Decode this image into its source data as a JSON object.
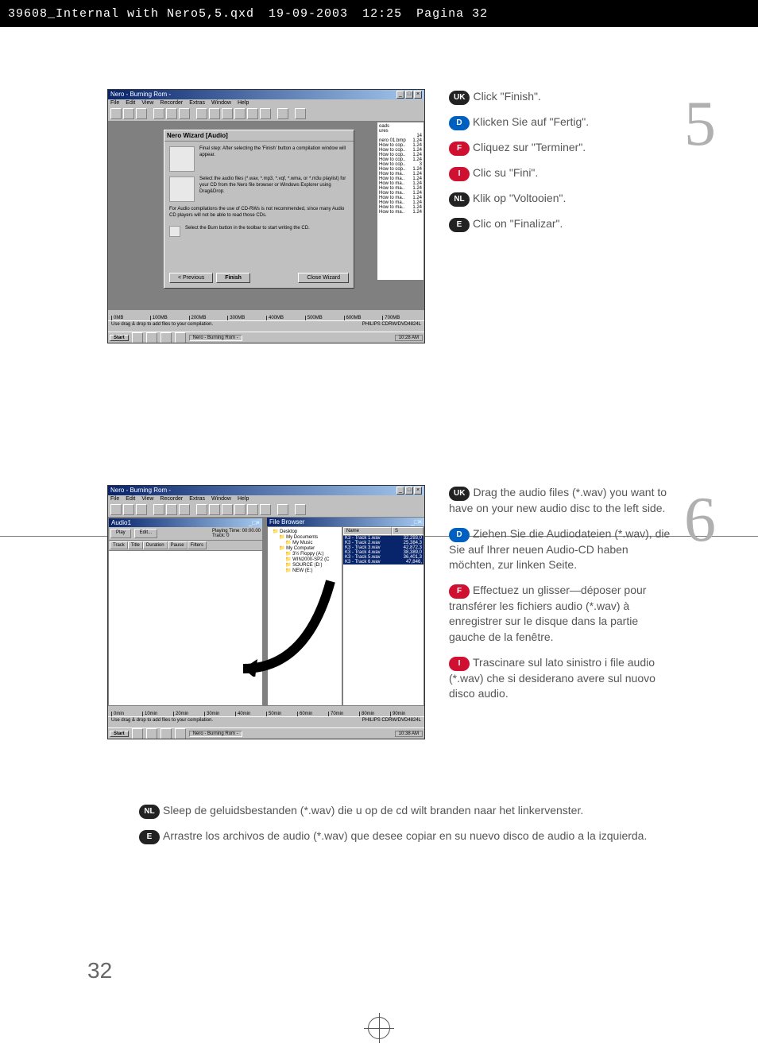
{
  "header": {
    "file": "39608_Internal with Nero5,5.qxd",
    "date": "19-09-2003",
    "time": "12:25",
    "page": "Pagina 32"
  },
  "pageNumber": "32",
  "step5": {
    "number": "5",
    "badges": {
      "uk": "UK",
      "d": "D",
      "f": "F",
      "i": "I",
      "nl": "NL",
      "e": "E"
    },
    "texts": {
      "uk": "Click \"Finish\".",
      "d": "Klicken Sie auf \"Fertig\".",
      "f": "Cliquez sur \"Terminer\".",
      "i": "Clic su \"Fini\".",
      "nl": "Klik op \"Voltooien\".",
      "e": "Clic on \"Finalizar\"."
    },
    "screenshot": {
      "title": "Nero - Burning Rom -",
      "menu": [
        "File",
        "Edit",
        "View",
        "Recorder",
        "Extras",
        "Window",
        "Help"
      ],
      "wizardTitle": "Nero Wizard [Audio]",
      "wizText1": "Final step: After selecting the 'Finish' button a compilation window will appear.",
      "wizText2": "Select the audio files (*.wav, *.mp3, *.vqf, *.wma, or *.m3u playlist) for your CD from the Nero file browser or Windows Explorer using Drag&Drop.",
      "wizText3": "For Audio compilations the use of CD-RWs is not recommended, since many Audio CD players will not be able to read those CDs.",
      "wizText4": "Select the Burn button in the toolbar to start writing the CD.",
      "btnPrev": "< Previous",
      "btnFinish": "Finish",
      "btnClose": "Close Wizard",
      "fileRows": [
        [
          "oads",
          ""
        ],
        [
          "ures",
          ""
        ],
        [
          "",
          "14"
        ],
        [
          "nero 01.bmp",
          "1.24"
        ],
        [
          "How to cop..",
          "1.24"
        ],
        [
          "How to cop..",
          "1.24"
        ],
        [
          "How to cop..",
          "1.24"
        ],
        [
          "How to cop..",
          "1.24"
        ],
        [
          "How to cop..",
          "3"
        ],
        [
          "How to cop..",
          "1.24"
        ],
        [
          "How to ma..",
          "1.24"
        ],
        [
          "How to ma..",
          "1.24"
        ],
        [
          "How to ma..",
          "1.24"
        ],
        [
          "How to ma..",
          "1.24"
        ],
        [
          "How to ma..",
          "1.24"
        ],
        [
          "How to ma..",
          "1.24"
        ],
        [
          "How to ma..",
          "1.24"
        ],
        [
          "How to ma..",
          "1.24"
        ],
        [
          "How to ma..",
          "1.24"
        ]
      ],
      "ruler": [
        "0MB",
        "100MB",
        "200MB",
        "300MB",
        "400MB",
        "500MB",
        "600MB",
        "700MB"
      ],
      "status": "Use drag & drop to add files to your compilation.",
      "drive": "PHILIPS  CDRW/DVD4824L",
      "taskStart": "Start",
      "taskApp": "Nero - Burning Rom -",
      "taskTime": "10:28 AM"
    }
  },
  "step6": {
    "number": "6",
    "badges": {
      "uk": "UK",
      "d": "D",
      "f": "F",
      "i": "I",
      "nl": "NL",
      "e": "E"
    },
    "texts": {
      "uk": "Drag the audio files (*.wav) you want to have on your new audio disc to the left side.",
      "d": "Ziehen Sie die Audiodateien (*.wav), die Sie auf Ihrer neuen Audio-CD haben möchten, zur linken Seite.",
      "f": "Effectuez un glisser—déposer pour transférer les fichiers audio (*.wav) à enregistrer sur le disque dans la partie gauche de la fenêtre.",
      "i": "Trascinare sul lato sinistro i file audio (*.wav) che si desiderano avere sul nuovo disco audio.",
      "nl": "Sleep de geluidsbestanden (*.wav) die u op de cd wilt branden naar het linkervenster.",
      "e": "Arrastre los archivos de audio (*.wav) que desee copiar en su nuevo disco de audio a la izquierda."
    },
    "screenshot": {
      "title": "Nero - Burning Rom -",
      "menu": [
        "File",
        "Edit",
        "View",
        "Recorder",
        "Extras",
        "Window",
        "Help"
      ],
      "audioTitle": "Audio1",
      "btns": {
        "play": "Play",
        "edit": "Edit..."
      },
      "info": {
        "pt": "Playing Time:",
        "ptv": "00:00.00",
        "tr": "Track:",
        "trv": "0"
      },
      "cols": [
        "Track",
        "Title",
        "Duration",
        "Pause",
        "Filters"
      ],
      "browserTitle": "File Browser",
      "tree": [
        {
          "t": "Desktop",
          "i": 0
        },
        {
          "t": "My Documents",
          "i": 1
        },
        {
          "t": "My Music",
          "i": 2
        },
        {
          "t": "My Computer",
          "i": 1
        },
        {
          "t": "3½ Floppy (A:)",
          "i": 2
        },
        {
          "t": "WIN2000-SP2 (C",
          "i": 2
        },
        {
          "t": "SOURCE (D:)",
          "i": 2
        },
        {
          "t": "NEW (E:)",
          "i": 2
        }
      ],
      "listHdr": [
        "Name",
        "S"
      ],
      "listRows": [
        [
          "K3 - Track 1.wav",
          "32,293,0"
        ],
        [
          "K3 - Track 2.wav",
          "25,384,3"
        ],
        [
          "K3 - Track 3.wav",
          "42,872,3"
        ],
        [
          "K3 - Track 4.wav",
          "38,389,0"
        ],
        [
          "K3 - Track 5.wav",
          "36,401,3"
        ],
        [
          "K3 - Track 6.wav",
          "47,846,"
        ]
      ],
      "ruler": [
        "0min",
        "10min",
        "20min",
        "30min",
        "40min",
        "50min",
        "60min",
        "70min",
        "80min",
        "90min"
      ],
      "status": "Use drag & drop to add files to your compilation.",
      "drive": "PHILIPS  CDRW/DVD4824L",
      "taskStart": "Start",
      "taskApp": "Nero - Burning Rom -",
      "taskTime": "10:38 AM"
    }
  }
}
